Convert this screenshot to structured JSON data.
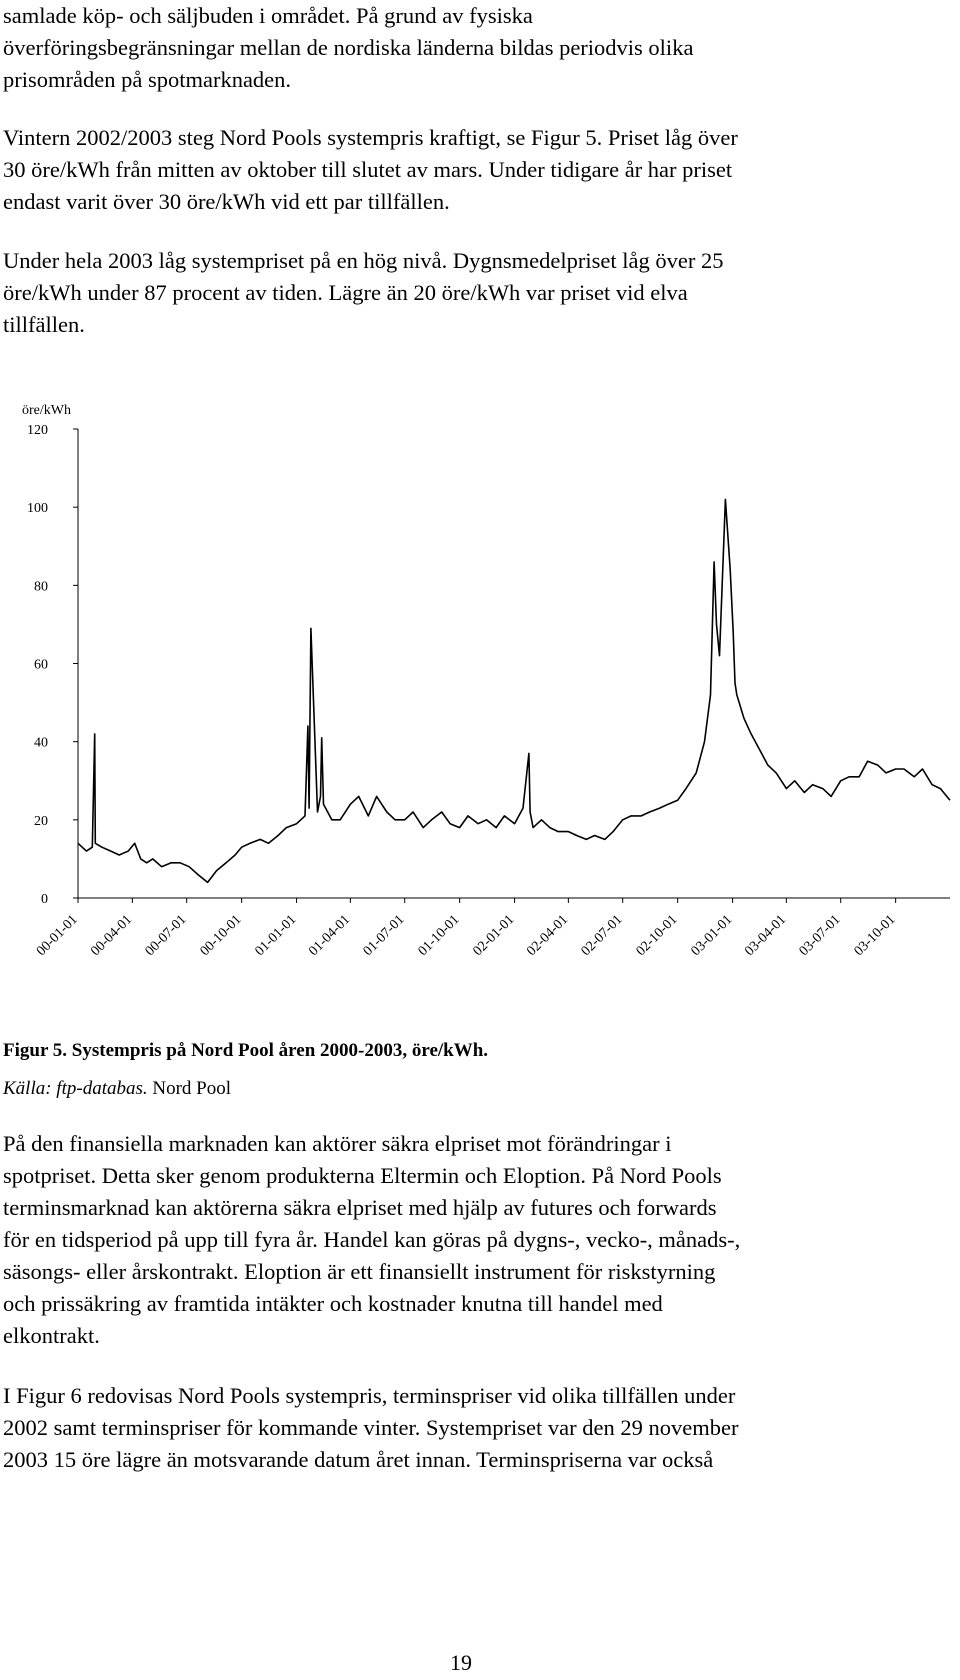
{
  "paragraphs": [
    [
      "samlade köp- och säljbuden i området. På grund av fysiska",
      "överföringsbegränsningar mellan de nordiska länderna bildas periodvis olika",
      "prisområden på spotmarknaden."
    ],
    [
      "Vintern 2002/2003 steg Nord Pools systempris kraftigt, se Figur 5. Priset låg över",
      "30 öre/kWh från mitten av oktober till slutet av mars. Under tidigare år har priset",
      "endast varit över 30 öre/kWh vid ett par tillfällen."
    ],
    [
      "Under hela 2003 låg systempriset på en hög nivå. Dygnsmedelpriset låg över 25",
      "öre/kWh under 87 procent av tiden. Lägre än 20 öre/kWh var priset vid elva",
      "tillfällen."
    ],
    [
      "På den finansiella marknaden kan aktörer säkra elpriset mot förändringar i",
      "spotpriset. Detta sker genom produkterna Eltermin och Eloption. På Nord Pools",
      "terminsmarknad kan aktörerna säkra elpriset med hjälp av futures och forwards",
      "för en tidsperiod på upp till fyra år. Handel kan göras på dygns-, vecko-, månads-,",
      "säsongs- eller årskontrakt. Eloption är ett finansiellt instrument för riskstyrning",
      "och prissäkring av framtida intäkter och kostnader knutna till handel med",
      "elkontrakt."
    ],
    [
      "I Figur 6 redovisas Nord Pools systempris, terminspriser vid olika tillfällen under",
      "2002 samt terminspriser för kommande vinter. Systempriset var den 29 november",
      "2003 15 öre lägre än motsvarande datum året innan. Terminspriserna var också"
    ]
  ],
  "figure": {
    "caption": "Figur 5. Systempris på Nord Pool åren 2000-2003, öre/kWh.",
    "source_label": "Källa: ftp-databas.",
    "source_name": "Nord Pool"
  },
  "page_number": "19",
  "colors": {
    "line": "#000000",
    "axis": "#000000",
    "text": "#000000"
  },
  "chart_data": {
    "type": "line",
    "ylabel": "öre/kWh",
    "ylim": [
      0,
      120
    ],
    "yticks": [
      "0",
      "20",
      "40",
      "60",
      "80",
      "100",
      "120"
    ],
    "xlim": [
      "2000-01-01",
      "2003-12-31"
    ],
    "xticks": [
      "00-01-01",
      "00-04-01",
      "00-07-01",
      "00-10-01",
      "01-01-01",
      "01-04-01",
      "01-07-01",
      "01-10-01",
      "02-01-01",
      "02-04-01",
      "02-07-01",
      "02-10-01",
      "03-01-01",
      "03-04-01",
      "03-07-01",
      "03-10-01"
    ],
    "grid": false,
    "legend": "none",
    "series": [
      {
        "x": [
          "2000-01-01",
          "2000-01-15",
          "2000-01-25",
          "2000-01-29",
          "2000-01-30",
          "2000-02-10",
          "2000-02-25",
          "2000-03-10",
          "2000-03-25",
          "2000-04-05",
          "2000-04-15",
          "2000-04-25",
          "2000-05-05",
          "2000-05-20",
          "2000-06-05",
          "2000-06-20",
          "2000-07-05",
          "2000-07-20",
          "2000-08-05",
          "2000-08-20",
          "2000-09-05",
          "2000-09-20",
          "2000-10-01",
          "2000-10-15",
          "2000-11-01",
          "2000-11-15",
          "2000-12-01",
          "2000-12-15",
          "2001-01-01",
          "2001-01-15",
          "2001-01-20",
          "2001-01-22",
          "2001-01-25",
          "2001-02-05",
          "2001-02-10",
          "2001-02-12",
          "2001-02-15",
          "2001-03-01",
          "2001-03-15",
          "2001-04-01",
          "2001-04-15",
          "2001-05-01",
          "2001-05-15",
          "2001-06-01",
          "2001-06-15",
          "2001-07-01",
          "2001-07-15",
          "2001-08-01",
          "2001-08-15",
          "2001-09-01",
          "2001-09-15",
          "2001-10-01",
          "2001-10-15",
          "2001-11-01",
          "2001-11-15",
          "2001-12-01",
          "2001-12-15",
          "2002-01-01",
          "2002-01-15",
          "2002-01-25",
          "2002-01-27",
          "2002-02-01",
          "2002-02-15",
          "2002-03-01",
          "2002-03-15",
          "2002-04-01",
          "2002-04-15",
          "2002-05-01",
          "2002-05-15",
          "2002-06-01",
          "2002-06-15",
          "2002-07-01",
          "2002-07-15",
          "2002-08-01",
          "2002-08-15",
          "2002-09-01",
          "2002-09-15",
          "2002-10-01",
          "2002-10-15",
          "2002-11-01",
          "2002-11-15",
          "2002-11-25",
          "2002-12-01",
          "2002-12-05",
          "2002-12-10",
          "2002-12-20",
          "2002-12-28",
          "2003-01-02",
          "2003-01-05",
          "2003-01-08",
          "2003-01-12",
          "2003-01-20",
          "2003-02-01",
          "2003-02-15",
          "2003-03-01",
          "2003-03-15",
          "2003-04-01",
          "2003-04-15",
          "2003-05-01",
          "2003-05-15",
          "2003-06-01",
          "2003-06-15",
          "2003-07-01",
          "2003-07-15",
          "2003-08-01",
          "2003-08-15",
          "2003-09-01",
          "2003-09-15",
          "2003-10-01",
          "2003-10-15",
          "2003-11-01",
          "2003-11-15",
          "2003-12-01",
          "2003-12-15",
          "2003-12-31"
        ],
        "y": [
          14,
          12,
          13,
          42,
          14,
          13,
          12,
          11,
          12,
          14,
          10,
          9,
          10,
          8,
          9,
          9,
          8,
          6,
          4,
          7,
          9,
          11,
          13,
          14,
          15,
          14,
          16,
          18,
          19,
          21,
          44,
          23,
          69,
          22,
          26,
          41,
          24,
          20,
          20,
          24,
          26,
          21,
          26,
          22,
          20,
          20,
          22,
          18,
          20,
          22,
          19,
          18,
          21,
          19,
          20,
          18,
          21,
          19,
          23,
          37,
          22,
          18,
          20,
          18,
          17,
          17,
          16,
          15,
          16,
          15,
          17,
          20,
          21,
          21,
          22,
          23,
          24,
          25,
          28,
          32,
          40,
          52,
          86,
          70,
          62,
          102,
          84,
          68,
          55,
          52,
          50,
          46,
          42,
          38,
          34,
          32,
          28,
          30,
          27,
          29,
          28,
          26,
          30,
          31,
          31,
          35,
          34,
          32,
          33,
          33,
          31,
          33,
          29,
          28,
          25
        ]
      }
    ]
  }
}
